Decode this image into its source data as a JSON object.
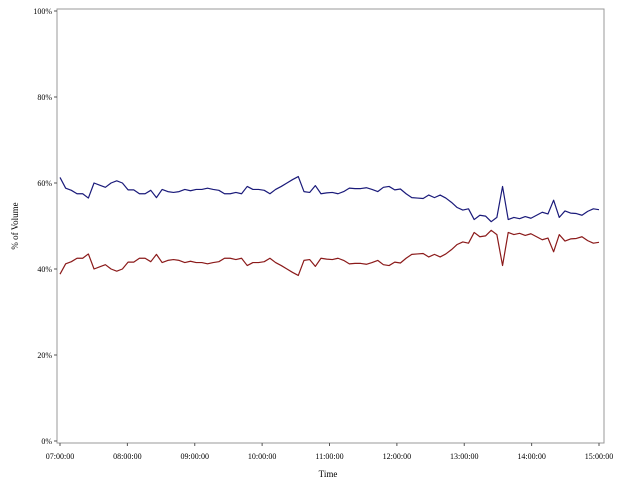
{
  "chart_data": {
    "type": "line",
    "title": "",
    "xlabel": "Time",
    "ylabel": "% of Volume",
    "x_tick_labels": [
      "07:00:00",
      "08:00:00",
      "09:00:00",
      "10:00:00",
      "11:00:00",
      "12:00:00",
      "13:00:00",
      "14:00:00",
      "15:00:00"
    ],
    "y_tick_labels": [
      "0%",
      "20%",
      "40%",
      "60%",
      "80%",
      "100%"
    ],
    "ylim": [
      0,
      100
    ],
    "xlim": [
      "07:00:00",
      "15:00:00"
    ],
    "x_interval_minutes": 5,
    "grid": false,
    "legend": "none",
    "series": [
      {
        "color": "#1a1a7a",
        "values": [
          61.3,
          58.8,
          58.3,
          57.5,
          57.5,
          56.5,
          60.0,
          59.5,
          59.0,
          60.0,
          60.5,
          60.0,
          58.4,
          58.4,
          57.5,
          57.5,
          58.3,
          56.6,
          58.5,
          58.0,
          57.8,
          58.0,
          58.5,
          58.2,
          58.5,
          58.5,
          58.8,
          58.5,
          58.3,
          57.5,
          57.5,
          57.8,
          57.5,
          59.2,
          58.5,
          58.5,
          58.3,
          57.5,
          58.5,
          59.2,
          60.0,
          60.8,
          61.5,
          58.0,
          57.8,
          59.4,
          57.5,
          57.7,
          57.8,
          57.5,
          58.0,
          58.8,
          58.7,
          58.7,
          58.9,
          58.5,
          58.0,
          59.0,
          59.2,
          58.4,
          58.6,
          57.5,
          56.6,
          56.5,
          56.4,
          57.2,
          56.6,
          57.2,
          56.5,
          55.5,
          54.3,
          53.7,
          54.0,
          51.5,
          52.5,
          52.3,
          51.0,
          52.0,
          59.2,
          51.5,
          52.0,
          51.7,
          52.2,
          51.8,
          52.5,
          53.2,
          52.8,
          56.0,
          52.0,
          53.5,
          53.0,
          52.9,
          52.5,
          53.4,
          54.0,
          53.8
        ]
      },
      {
        "color": "#8b1a1a",
        "values": [
          38.8,
          41.2,
          41.7,
          42.5,
          42.5,
          43.5,
          40.0,
          40.5,
          41.0,
          40.0,
          39.5,
          40.0,
          41.6,
          41.6,
          42.5,
          42.5,
          41.7,
          43.4,
          41.5,
          42.0,
          42.2,
          42.0,
          41.5,
          41.8,
          41.5,
          41.5,
          41.2,
          41.5,
          41.7,
          42.5,
          42.5,
          42.2,
          42.5,
          40.8,
          41.5,
          41.5,
          41.7,
          42.5,
          41.5,
          40.8,
          40.0,
          39.2,
          38.5,
          42.0,
          42.2,
          40.6,
          42.5,
          42.3,
          42.2,
          42.5,
          42.0,
          41.2,
          41.3,
          41.3,
          41.1,
          41.5,
          42.0,
          41.0,
          40.8,
          41.6,
          41.4,
          42.5,
          43.4,
          43.5,
          43.6,
          42.8,
          43.4,
          42.8,
          43.5,
          44.5,
          45.7,
          46.3,
          46.0,
          48.5,
          47.5,
          47.7,
          49.0,
          48.0,
          40.8,
          48.5,
          48.0,
          48.3,
          47.8,
          48.2,
          47.5,
          46.8,
          47.2,
          44.0,
          48.0,
          46.5,
          47.0,
          47.1,
          47.5,
          46.6,
          46.0,
          46.2
        ]
      }
    ]
  }
}
